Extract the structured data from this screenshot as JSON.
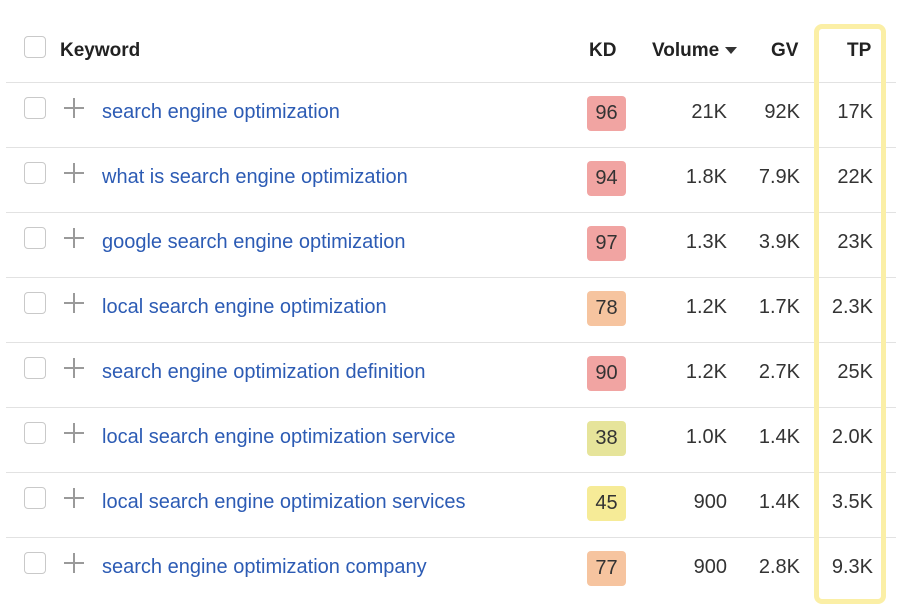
{
  "header": {
    "keyword": "Keyword",
    "kd": "KD",
    "volume": "Volume",
    "gv": "GV",
    "tp": "TP"
  },
  "colors": {
    "link": "#2c5bb4",
    "kd_red": "#f1a4a2",
    "kd_orange": "#f6c49f",
    "kd_olive": "#e6e49a",
    "kd_yellow": "#f6eb97",
    "tp_highlight": "#fbefa6"
  },
  "rows": [
    {
      "keyword": "search engine optimization",
      "kd": "96",
      "kd_color": "#f1a4a2",
      "volume": "21K",
      "gv": "92K",
      "tp": "17K"
    },
    {
      "keyword": "what is search engine optimization",
      "kd": "94",
      "kd_color": "#f1a4a2",
      "volume": "1.8K",
      "gv": "7.9K",
      "tp": "22K"
    },
    {
      "keyword": "google search engine optimization",
      "kd": "97",
      "kd_color": "#f1a4a2",
      "volume": "1.3K",
      "gv": "3.9K",
      "tp": "23K"
    },
    {
      "keyword": "local search engine optimization",
      "kd": "78",
      "kd_color": "#f6c49f",
      "volume": "1.2K",
      "gv": "1.7K",
      "tp": "2.3K"
    },
    {
      "keyword": "search engine optimization definition",
      "kd": "90",
      "kd_color": "#f1a4a2",
      "volume": "1.2K",
      "gv": "2.7K",
      "tp": "25K"
    },
    {
      "keyword": "local search engine optimization service",
      "kd": "38",
      "kd_color": "#e6e49a",
      "volume": "1.0K",
      "gv": "1.4K",
      "tp": "2.0K"
    },
    {
      "keyword": "local search engine optimization services",
      "kd": "45",
      "kd_color": "#f6eb97",
      "volume": "900",
      "gv": "1.4K",
      "tp": "3.5K"
    },
    {
      "keyword": "search engine optimization company",
      "kd": "77",
      "kd_color": "#f6c49f",
      "volume": "900",
      "gv": "2.8K",
      "tp": "9.3K"
    }
  ]
}
